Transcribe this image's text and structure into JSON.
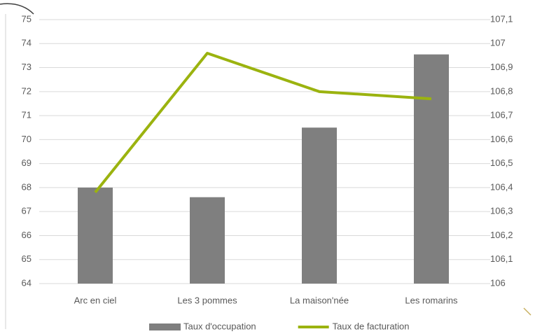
{
  "chart_data": {
    "type": "bar",
    "categories": [
      "Arc en ciel",
      "Les 3 pommes",
      "La maison'née",
      "Les romarins"
    ],
    "series": [
      {
        "name": "Taux d'occupation",
        "type": "bar",
        "color": "#7f7f7f",
        "values": [
          68,
          67.6,
          70.5,
          73.55
        ]
      },
      {
        "name": "Taux de facturation",
        "type": "line",
        "axis": "y2",
        "color": "#9bb30f",
        "values": [
          106.38,
          106.96,
          106.8,
          106.77
        ]
      }
    ],
    "ylim": [
      64,
      75
    ],
    "yticks": [
      64,
      65,
      66,
      67,
      68,
      69,
      70,
      71,
      72,
      73,
      74,
      75
    ],
    "y2lim": [
      106,
      107.1
    ],
    "y2ticks": [
      106,
      {
        "value": 106.1,
        "label": "106,1"
      },
      {
        "value": 106.2,
        "label": "106,2"
      },
      {
        "value": 106.3,
        "label": "106,3"
      },
      {
        "value": 106.4,
        "label": "106,4"
      },
      {
        "value": 106.5,
        "label": "106,5"
      },
      {
        "value": 106.6,
        "label": "106,6"
      },
      {
        "value": 106.7,
        "label": "106,7"
      },
      {
        "value": 106.8,
        "label": "106,8"
      },
      {
        "value": 106.9,
        "label": "106,9"
      },
      107,
      {
        "value": 107.1,
        "label": "107,1"
      }
    ],
    "grid": true,
    "legend": "bottom"
  }
}
